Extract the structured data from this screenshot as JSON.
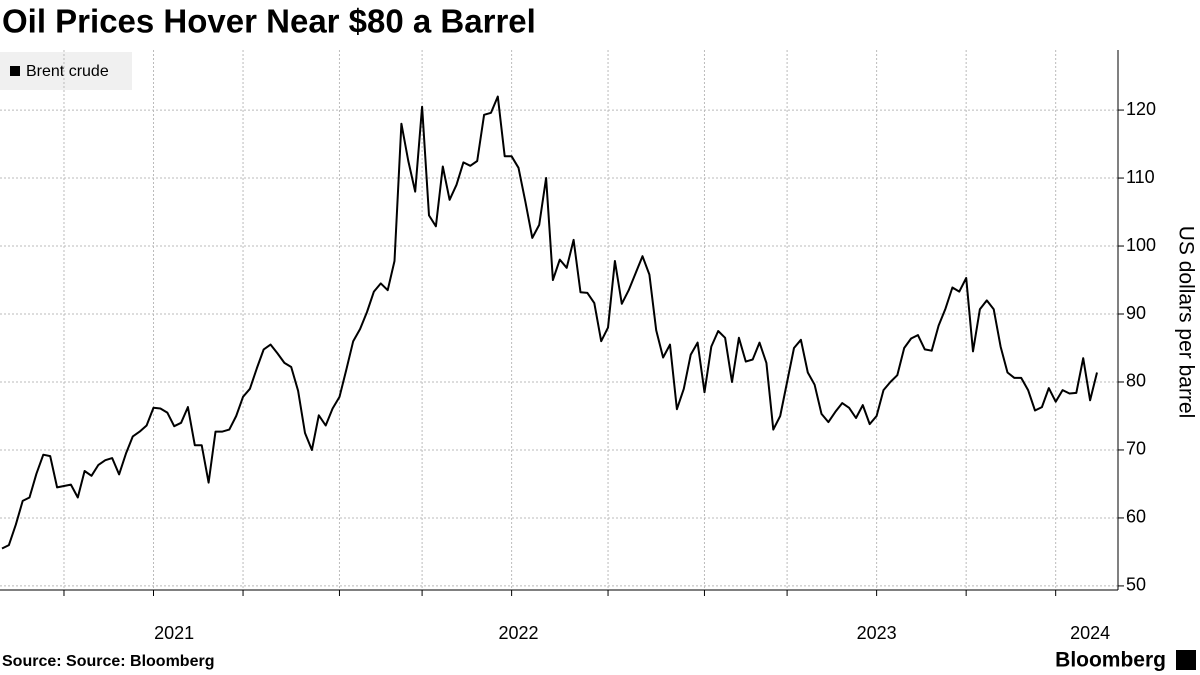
{
  "chart_data": {
    "type": "line",
    "title": "Oil Prices Hover Near $80 a Barrel",
    "y_label": "US dollars per barrel",
    "source": "Source: Source: Bloomberg",
    "brand": "Bloomberg",
    "categories": [
      null,
      null,
      null,
      null,
      null,
      null,
      null,
      null,
      null,
      null,
      null,
      null,
      null,
      null,
      null,
      null,
      null,
      null,
      null,
      null,
      null,
      null,
      null,
      null,
      null,
      "2021",
      null,
      null,
      null,
      null,
      null,
      null,
      null,
      null,
      null,
      null,
      null,
      null,
      null,
      null,
      null,
      null,
      null,
      null,
      null,
      null,
      null,
      null,
      null,
      null,
      null,
      null,
      null,
      null,
      null,
      null,
      null,
      null,
      null,
      null,
      null,
      null,
      null,
      null,
      null,
      null,
      null,
      null,
      null,
      null,
      null,
      null,
      null,
      null,
      null,
      "2022",
      null,
      null,
      null,
      null,
      null,
      null,
      null,
      null,
      null,
      null,
      null,
      null,
      null,
      null,
      null,
      null,
      null,
      null,
      null,
      null,
      null,
      null,
      null,
      null,
      null,
      null,
      null,
      null,
      null,
      null,
      null,
      null,
      null,
      null,
      null,
      null,
      null,
      null,
      null,
      null,
      null,
      null,
      null,
      null,
      null,
      null,
      null,
      null,
      null,
      null,
      null,
      "2023",
      null,
      null,
      null,
      null,
      null,
      null,
      null,
      null,
      null,
      null,
      null,
      null,
      null,
      null,
      null,
      null,
      null,
      null,
      null,
      null,
      null,
      null,
      null,
      null,
      null,
      null,
      null,
      null,
      null,
      null,
      "2024",
      null
    ],
    "series": [
      {
        "name": "Brent crude",
        "color": "#000000",
        "values": [
          55.5,
          56,
          59,
          62.5,
          63,
          66.5,
          69.3,
          69.1,
          64.5,
          64.7,
          64.9,
          63,
          66.9,
          66.2,
          67.8,
          68.5,
          68.8,
          66.4,
          69.5,
          72,
          72.7,
          73.6,
          76.2,
          76.1,
          75.5,
          73.5,
          74,
          76.3,
          70.7,
          70.7,
          65.2,
          72.7,
          72.7,
          73,
          75,
          77.8,
          79,
          82,
          84.8,
          85.5,
          84.2,
          82.8,
          82.2,
          78.7,
          72.5,
          70,
          75.1,
          73.6,
          76.1,
          77.8,
          81.8,
          86,
          87.8,
          90.3,
          93.3,
          94.5,
          93.5,
          97.8,
          118,
          112.5,
          108,
          120.5,
          104.5,
          102.9,
          111.7,
          106.8,
          109,
          112.3,
          111.8,
          112.5,
          119.3,
          119.6,
          122,
          113.2,
          113.2,
          111.5,
          106.5,
          101.2,
          103.1,
          110,
          95,
          98,
          96.8,
          100.9,
          93.2,
          93.1,
          91.6,
          86,
          88,
          97.8,
          91.5,
          93.5,
          96,
          98.5,
          95.8,
          87.6,
          83.6,
          85.5,
          76,
          79,
          84,
          85.8,
          78.5,
          85.2,
          87.5,
          86.5,
          80,
          86.5,
          83,
          83.3,
          85.8,
          82.8,
          73,
          75,
          80,
          85,
          86.2,
          81.4,
          79.6,
          75.3,
          74.1,
          75.6,
          76.9,
          76.2,
          74.7,
          76.6,
          73.8,
          75,
          78.8,
          80,
          81,
          85,
          86.4,
          86.9,
          84.8,
          84.6,
          88.3,
          90.8,
          93.9,
          93.3,
          95.3,
          84.5,
          90.7,
          92,
          90.7,
          85.2,
          81.4,
          80.6,
          80.6,
          78.8,
          75.8,
          76.3,
          79.1,
          77.1,
          78.8,
          78.3,
          78.4,
          83.5,
          77.3,
          81.4
        ]
      }
    ],
    "ylim": [
      49.4,
      128.1
    ],
    "yticks": [
      50,
      60,
      70,
      80,
      90,
      100,
      110,
      120
    ],
    "grid": true,
    "legend": "top-left"
  }
}
